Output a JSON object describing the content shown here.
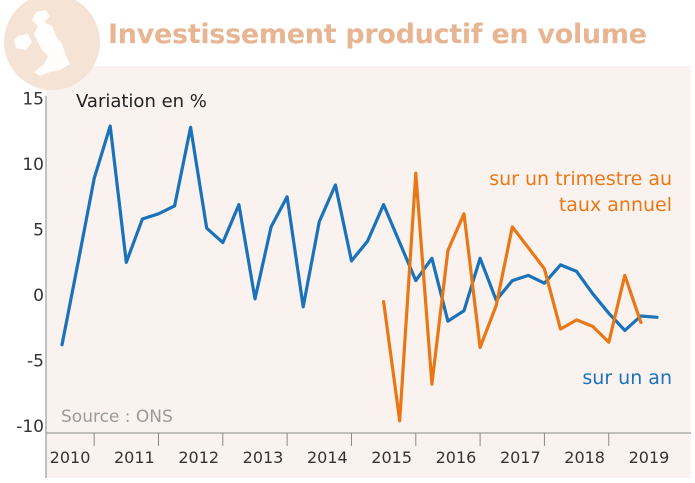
{
  "header": {
    "title": "Investissement productif en volume"
  },
  "colors": {
    "plot_background": "#faf2ef",
    "blue_series": "#1a73b8",
    "orange_series": "#e87817",
    "title_color": "#e8b592",
    "badge_color": "#f5e3d6"
  },
  "chart_data": {
    "type": "line",
    "title": "Investissement productif en volume",
    "ylabel": "Variation en %",
    "xlabel": "",
    "ylim": [
      -11,
      15
    ],
    "yticks": [
      15,
      10,
      5,
      0,
      -5,
      -10
    ],
    "ytick_labels": [
      "15",
      "10",
      "5",
      "0",
      "-5",
      "-10"
    ],
    "xlim": [
      2009.8,
      2019.6
    ],
    "year_labels": [
      "2010",
      "2011",
      "2012",
      "2013",
      "2014",
      "2015",
      "2016",
      "2017",
      "2018",
      "2019"
    ],
    "year_boundaries": [
      2010.5,
      2011.5,
      2012.5,
      2013.5,
      2014.5,
      2015.5,
      2016.5,
      2017.5,
      2018.5
    ],
    "grid": false,
    "source": "Source : ONS",
    "series": [
      {
        "name": "sur un an",
        "label": "sur un an",
        "color": "#1a73b8",
        "x": [
          2010.0,
          2010.25,
          2010.5,
          2010.75,
          2011.0,
          2011.25,
          2011.5,
          2011.75,
          2012.0,
          2012.25,
          2012.5,
          2012.75,
          2013.0,
          2013.25,
          2013.5,
          2013.75,
          2014.0,
          2014.25,
          2014.5,
          2014.75,
          2015.0,
          2015.25,
          2015.5,
          2015.75,
          2016.0,
          2016.25,
          2016.5,
          2016.75,
          2017.0,
          2017.25,
          2017.5,
          2017.75,
          2018.0,
          2018.25,
          2018.5,
          2018.75,
          2019.0,
          2019.25
        ],
        "values": [
          -3.8,
          2.5,
          8.9,
          12.9,
          2.5,
          5.8,
          6.2,
          6.8,
          12.8,
          5.1,
          4.0,
          6.9,
          -0.3,
          5.2,
          7.5,
          -0.9,
          5.6,
          8.4,
          2.6,
          4.1,
          6.9,
          4.0,
          1.1,
          2.8,
          -2.0,
          -1.2,
          2.8,
          -0.4,
          1.1,
          1.5,
          0.9,
          2.3,
          1.8,
          0.1,
          -1.4,
          -2.7,
          -1.6,
          -1.7
        ]
      },
      {
        "name": "sur un trimestre au taux annuel",
        "label_lines": [
          "sur un trimestre au",
          "taux annuel"
        ],
        "color": "#e87817",
        "x": [
          2015.0,
          2015.25,
          2015.5,
          2015.75,
          2016.0,
          2016.25,
          2016.5,
          2016.75,
          2017.0,
          2017.25,
          2017.5,
          2017.75,
          2018.0,
          2018.25,
          2018.5,
          2018.75,
          2019.0,
          2019.25
        ],
        "values": [
          -0.5,
          -9.6,
          9.3,
          -6.8,
          3.4,
          6.2,
          -4.0,
          -0.8,
          5.2,
          3.6,
          2.0,
          -2.6,
          -1.9,
          -2.4,
          -3.6,
          1.5,
          -2.1,
          null
        ]
      }
    ]
  }
}
